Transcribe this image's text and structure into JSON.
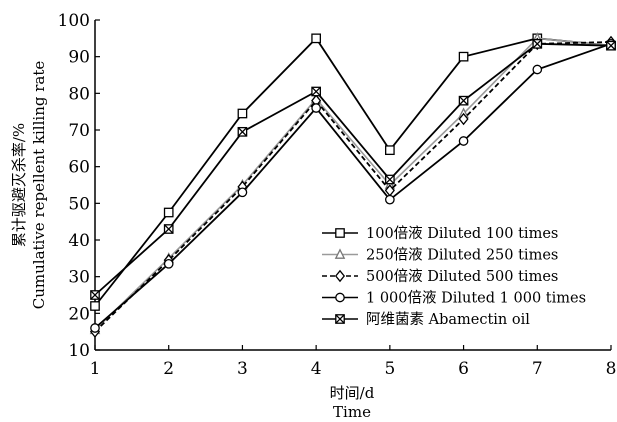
{
  "chart_data": {
    "type": "line",
    "xlabel_cn": "时间/d",
    "xlabel_en": "Time",
    "ylabel_cn": "累计驱避灭杀率/%",
    "ylabel_en": "Cumulative repellent killing rate",
    "xlim": [
      1,
      8
    ],
    "ylim": [
      10,
      100
    ],
    "x_ticks": [
      1,
      2,
      3,
      4,
      5,
      6,
      7,
      8
    ],
    "y_ticks": [
      10,
      20,
      30,
      40,
      50,
      60,
      70,
      80,
      90,
      100
    ],
    "grid": false,
    "legend_position": "right-center",
    "x": [
      1,
      2,
      3,
      4,
      5,
      6,
      7,
      8
    ],
    "series": [
      {
        "name": "100倍液 Diluted 100 times",
        "marker": "square",
        "dash": "solid",
        "color": "#000000",
        "values": [
          22,
          47.5,
          74.5,
          95,
          64.5,
          90,
          95,
          93
        ]
      },
      {
        "name": "250倍液 Diluted 250 times",
        "marker": "triangle",
        "dash": "solid",
        "color": "#9a9a9a",
        "values": [
          15.5,
          35,
          55,
          78.5,
          55,
          74.5,
          95,
          93
        ]
      },
      {
        "name": "500倍液 Diluted 500 times",
        "marker": "diamond",
        "dash": "dashed",
        "color": "#000000",
        "values": [
          15,
          34.5,
          54.5,
          78,
          53.5,
          73,
          93.5,
          94
        ]
      },
      {
        "name": "1 000倍液 Diluted 1 000 times",
        "marker": "circle",
        "dash": "solid",
        "color": "#000000",
        "values": [
          16,
          33.5,
          53,
          76,
          51,
          67,
          86.5,
          93.5
        ]
      },
      {
        "name": "阿维菌素 Abamectin oil",
        "marker": "xsquare",
        "dash": "solid",
        "color": "#000000",
        "values": [
          25,
          43,
          69.5,
          80.5,
          56.5,
          78,
          93.5,
          93
        ]
      }
    ]
  }
}
